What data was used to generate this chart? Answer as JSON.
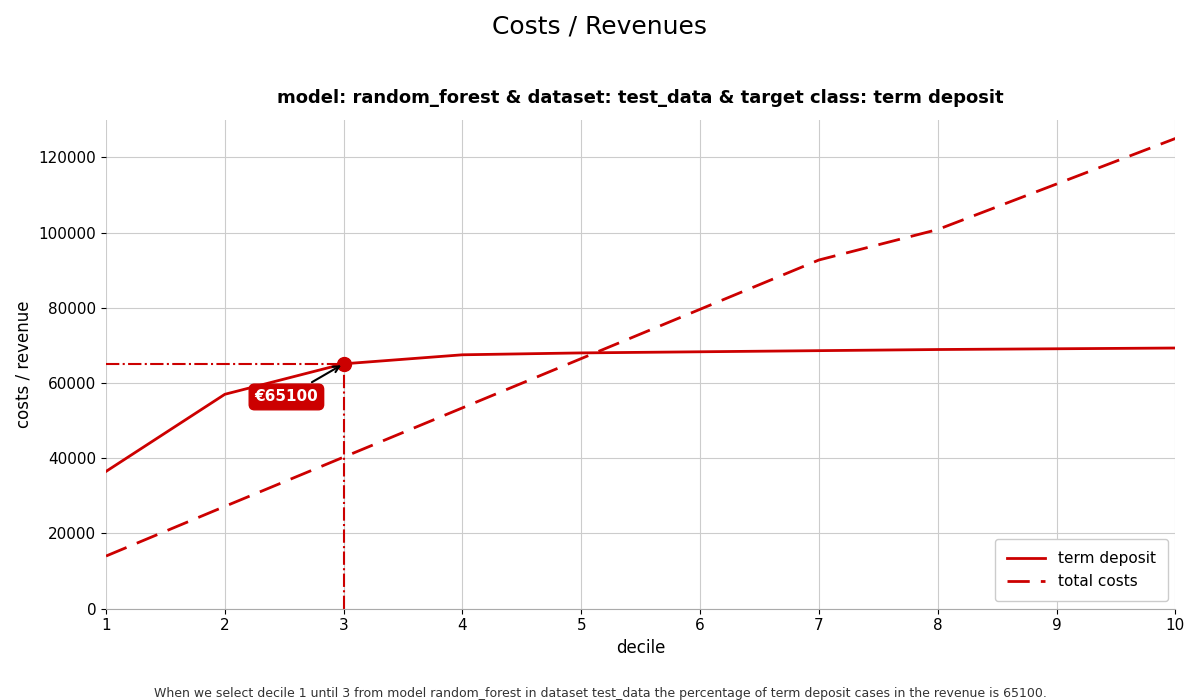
{
  "title": "Costs / Revenues",
  "subtitle": "model: random_forest & dataset: test_data & target class: term deposit",
  "xlabel": "decile",
  "ylabel": "costs / revenue",
  "footnote": "When we select decile 1 until 3 from model random_forest in dataset test_data the percentage of term deposit cases in the revenue is 65100.",
  "revenue_x": [
    1,
    2,
    3,
    4,
    5,
    6,
    7,
    8,
    9,
    10
  ],
  "revenue_y": [
    36500,
    57000,
    65100,
    67500,
    68000,
    68300,
    68600,
    68900,
    69100,
    69300
  ],
  "costs_x": [
    1,
    2,
    3,
    4,
    5,
    6,
    7,
    8,
    9,
    10
  ],
  "costs_y": [
    14000,
    27200,
    40300,
    53400,
    66500,
    79600,
    92700,
    100800,
    112900,
    125000
  ],
  "highlight_x": 3,
  "highlight_y": 65100,
  "hline_y": 65100,
  "vline_x": 3,
  "annotation_label": "€65100",
  "line_color": "#cc0000",
  "background_color": "#ffffff",
  "grid_color": "#cccccc",
  "xlim": [
    1,
    10
  ],
  "ylim": [
    0,
    130000
  ],
  "yticks": [
    0,
    20000,
    40000,
    60000,
    80000,
    100000,
    120000
  ],
  "xticks": [
    1,
    2,
    3,
    4,
    5,
    6,
    7,
    8,
    9,
    10
  ],
  "legend_label_revenue": "term deposit",
  "legend_label_costs": "total costs",
  "title_fontsize": 18,
  "subtitle_fontsize": 13,
  "axis_label_fontsize": 12,
  "tick_fontsize": 11,
  "legend_fontsize": 11,
  "footnote_fontsize": 9
}
